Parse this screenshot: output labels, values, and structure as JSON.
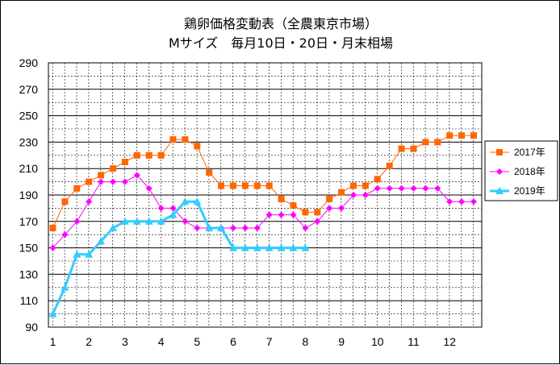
{
  "chart_data": {
    "type": "line",
    "title": "鶏卵価格変動表（全農東京市場）",
    "subtitle": "Mサイズ　毎月10日・20日・月末相場",
    "xlabel": "",
    "ylabel": "",
    "ylim": [
      90,
      290
    ],
    "yticks": [
      90,
      110,
      130,
      150,
      170,
      190,
      210,
      230,
      250,
      270,
      290
    ],
    "xticks": [
      "1",
      "2",
      "3",
      "4",
      "5",
      "6",
      "7",
      "8",
      "9",
      "10",
      "11",
      "12"
    ],
    "grid": true,
    "legend_position": "right",
    "series": [
      {
        "name": "2017年",
        "color": "#FF6600",
        "marker": "square",
        "values": [
          165,
          185,
          195,
          200,
          205,
          210,
          215,
          220,
          220,
          220,
          232,
          232,
          227,
          207,
          197,
          197,
          197,
          197,
          197,
          187,
          182,
          177,
          177,
          187,
          192,
          197,
          197,
          202,
          212,
          225,
          225,
          230,
          230,
          235,
          235,
          235
        ]
      },
      {
        "name": "2018年",
        "color": "#FF00FF",
        "marker": "diamond",
        "values": [
          150,
          160,
          170,
          185,
          200,
          200,
          200,
          205,
          195,
          180,
          180,
          170,
          165,
          165,
          165,
          165,
          165,
          165,
          175,
          175,
          175,
          165,
          170,
          180,
          180,
          190,
          190,
          195,
          195,
          195,
          195,
          195,
          195,
          185,
          185,
          185
        ]
      },
      {
        "name": "2019年",
        "color": "#33CCFF",
        "marker": "triangle",
        "values": [
          100,
          120,
          145,
          145,
          155,
          165,
          170,
          170,
          170,
          170,
          175,
          185,
          185,
          165,
          165,
          150,
          150,
          150,
          150,
          150,
          150,
          150
        ]
      }
    ]
  }
}
